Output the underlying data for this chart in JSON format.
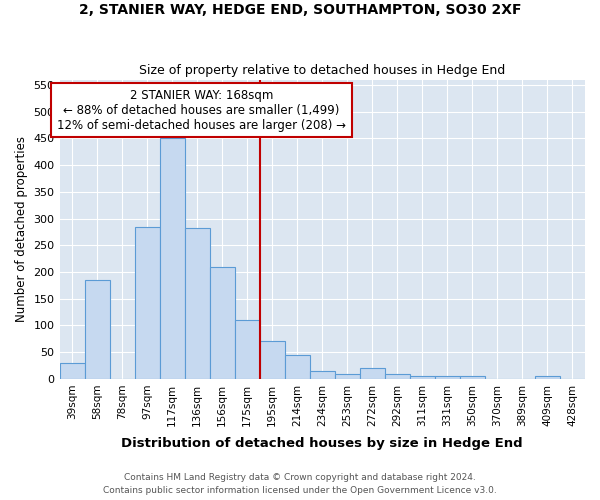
{
  "title1": "2, STANIER WAY, HEDGE END, SOUTHAMPTON, SO30 2XF",
  "title2": "Size of property relative to detached houses in Hedge End",
  "xlabel": "Distribution of detached houses by size in Hedge End",
  "ylabel": "Number of detached properties",
  "categories": [
    "39sqm",
    "58sqm",
    "78sqm",
    "97sqm",
    "117sqm",
    "136sqm",
    "156sqm",
    "175sqm",
    "195sqm",
    "214sqm",
    "234sqm",
    "253sqm",
    "272sqm",
    "292sqm",
    "311sqm",
    "331sqm",
    "350sqm",
    "370sqm",
    "389sqm",
    "409sqm",
    "428sqm"
  ],
  "values": [
    30,
    185,
    0,
    285,
    450,
    283,
    210,
    110,
    70,
    45,
    15,
    10,
    20,
    10,
    5,
    5,
    5,
    0,
    0,
    5,
    0
  ],
  "bar_color": "#c6d9f0",
  "bar_edge_color": "#5b9bd5",
  "vline_x": 7.5,
  "vline_color": "#c00000",
  "annotation_text": "2 STANIER WAY: 168sqm\n← 88% of detached houses are smaller (1,499)\n12% of semi-detached houses are larger (208) →",
  "annotation_box_color": "#ffffff",
  "annotation_box_edge": "#c00000",
  "ylim": [
    0,
    560
  ],
  "yticks": [
    0,
    50,
    100,
    150,
    200,
    250,
    300,
    350,
    400,
    450,
    500,
    550
  ],
  "footnote1": "Contains HM Land Registry data © Crown copyright and database right 2024.",
  "footnote2": "Contains public sector information licensed under the Open Government Licence v3.0.",
  "bg_color": "#ffffff",
  "plot_bg_color": "#dce6f1",
  "grid_color": "#ffffff"
}
